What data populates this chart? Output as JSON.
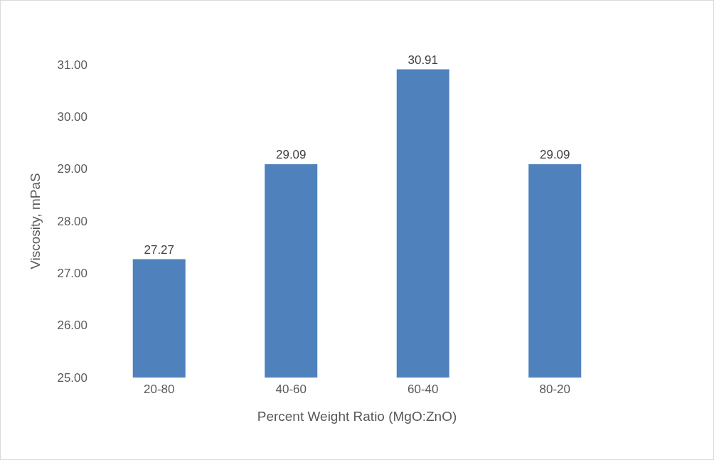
{
  "chart_data": {
    "type": "bar",
    "xlabel": "Percent Weight Ratio (MgO:ZnO)",
    "ylabel": "Viscosity, mPaS",
    "categories": [
      "20-80",
      "40-60",
      "60-40",
      "80-20"
    ],
    "values": [
      27.27,
      29.09,
      30.91,
      29.09
    ],
    "color": "#4f81bd",
    "ylim": [
      25,
      31
    ],
    "yticks": [
      {
        "value": 25,
        "label": "25.00"
      },
      {
        "value": 26,
        "label": "26.00"
      },
      {
        "value": 27,
        "label": "27.00"
      },
      {
        "value": 28,
        "label": "28.00"
      },
      {
        "value": 29,
        "label": "29.00"
      },
      {
        "value": 30,
        "label": "30.00"
      },
      {
        "value": 31,
        "label": "31.00"
      }
    ],
    "grid": false,
    "data_labels": true
  }
}
